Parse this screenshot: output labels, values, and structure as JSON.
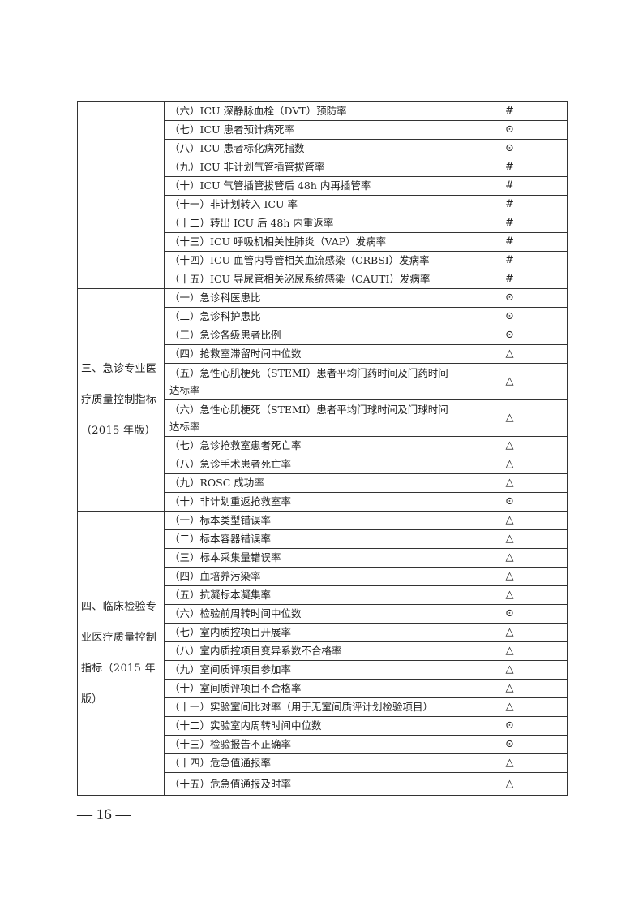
{
  "sections": [
    {
      "title": "",
      "rows": [
        {
          "name": "（六）ICU 深静脉血栓（DVT）预防率",
          "mark": "#"
        },
        {
          "name": "（七）ICU 患者预计病死率",
          "mark": "⊙"
        },
        {
          "name": "（八）ICU 患者标化病死指数",
          "mark": "⊙"
        },
        {
          "name": "（九）ICU 非计划气管插管拔管率",
          "mark": "#"
        },
        {
          "name": "（十）ICU 气管插管拔管后 48h 内再插管率",
          "mark": "#"
        },
        {
          "name": "（十一）非计划转入 ICU 率",
          "mark": "#"
        },
        {
          "name": "（十二）转出 ICU 后 48h 内重返率",
          "mark": "#"
        },
        {
          "name": "（十三）ICU 呼吸机相关性肺炎（VAP）发病率",
          "mark": "#"
        },
        {
          "name": "（十四）ICU 血管内导管相关血流感染（CRBSI）发病率",
          "mark": "#"
        },
        {
          "name": "（十五）ICU 导尿管相关泌尿系统感染（CAUTI）发病率",
          "mark": "#"
        }
      ]
    },
    {
      "title": "三、急诊专业医疗质量控制指标（2015 年版）",
      "rows": [
        {
          "name": "（一）急诊科医患比",
          "mark": "⊙"
        },
        {
          "name": "（二）急诊科护患比",
          "mark": "⊙"
        },
        {
          "name": "（三）急诊各级患者比例",
          "mark": "⊙"
        },
        {
          "name": "（四）抢救室滞留时间中位数",
          "mark": "△"
        },
        {
          "name": "（五）急性心肌梗死（STEMI）患者平均门药时间及门药时间达标率",
          "mark": "△"
        },
        {
          "name": "（六）急性心肌梗死（STEMI）患者平均门球时间及门球时间达标率",
          "mark": "△"
        },
        {
          "name": "（七）急诊抢救室患者死亡率",
          "mark": "△"
        },
        {
          "name": "（八）急诊手术患者死亡率",
          "mark": "△"
        },
        {
          "name": "（九）ROSC 成功率",
          "mark": "△"
        },
        {
          "name": "（十）非计划重返抢救室率",
          "mark": "⊙"
        }
      ]
    },
    {
      "title": "四、临床检验专业医疗质量控制指标（2015 年版）",
      "rows": [
        {
          "name": "（一）标本类型错误率",
          "mark": "△"
        },
        {
          "name": "（二）标本容器错误率",
          "mark": "△"
        },
        {
          "name": "（三）标本采集量错误率",
          "mark": "△"
        },
        {
          "name": "（四）血培养污染率",
          "mark": "△"
        },
        {
          "name": "（五）抗凝标本凝集率",
          "mark": "△"
        },
        {
          "name": "（六）检验前周转时间中位数",
          "mark": "⊙"
        },
        {
          "name": "（七）室内质控项目开展率",
          "mark": "△"
        },
        {
          "name": "（八）室内质控项目变异系数不合格率",
          "mark": "△"
        },
        {
          "name": "（九）室间质评项目参加率",
          "mark": "△"
        },
        {
          "name": "（十）室间质评项目不合格率",
          "mark": "△"
        },
        {
          "name": "（十一）实验室间比对率（用于无室间质评计划检验项目）",
          "mark": "△"
        },
        {
          "name": "（十二）实验室内周转时间中位数",
          "mark": "⊙"
        },
        {
          "name": "（十三）检验报告不正确率",
          "mark": "⊙"
        },
        {
          "name": "（十四）危急值通报率",
          "mark": "△"
        },
        {
          "name": "（十五）危急值通报及时率",
          "mark": "△"
        }
      ]
    }
  ],
  "page_number": "— 16 —"
}
